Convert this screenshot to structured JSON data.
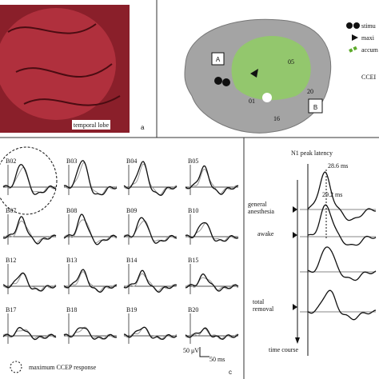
{
  "panel_a": {
    "caption": "temporal lobe",
    "label": "a"
  },
  "panel_b": {
    "legend": [
      "stimu",
      "maxi",
      "accum"
    ],
    "region_a": "A",
    "region_b": "B",
    "ccep_label": "CCEI",
    "electrodes": [
      "05",
      "20",
      "01",
      "16"
    ]
  },
  "panel_c": {
    "label": "c",
    "channels": [
      "B02",
      "B03",
      "B04",
      "B05",
      "B07",
      "B08",
      "B09",
      "B10",
      "B12",
      "B13",
      "B14",
      "B15",
      "B17",
      "B18",
      "B19",
      "B20"
    ],
    "scale_voltage": "50 μV",
    "scale_time": "50 ms",
    "legend": "maximum CCEP response"
  },
  "panel_d": {
    "title": "N1 peak latency",
    "latency_1": "28.6 ms",
    "latency_2": "29.2 ms",
    "conditions": [
      "general anesthesia",
      "awake",
      "total removal"
    ],
    "axis_label": "time course"
  }
}
